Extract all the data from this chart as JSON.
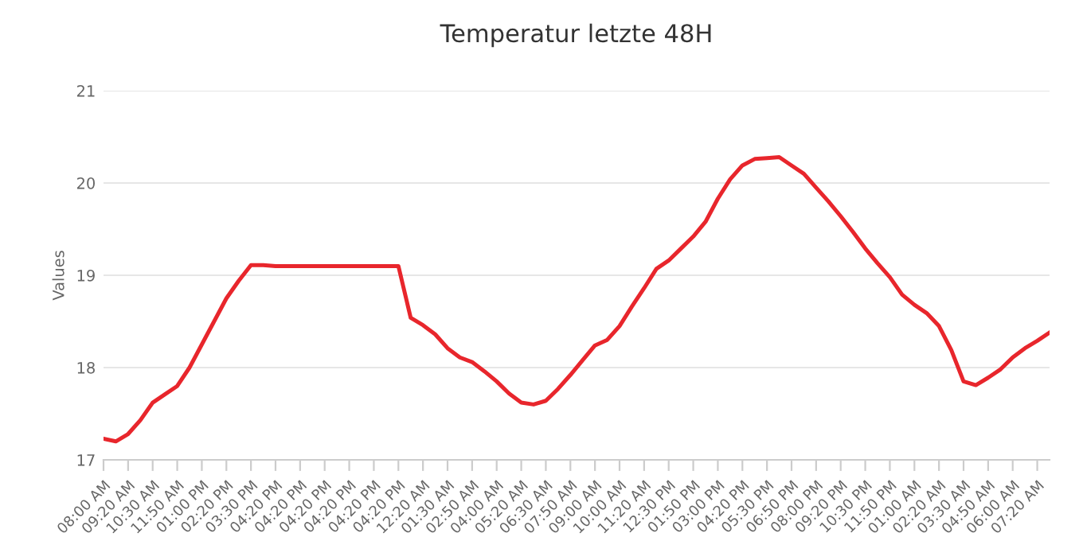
{
  "chart_data": {
    "type": "line",
    "title": "Temperatur letzte 48H",
    "ylabel": "Values",
    "categories": [
      "08:00 AM",
      null,
      "09:20 AM",
      null,
      "10:30 AM",
      null,
      "11:50 AM",
      null,
      "01:00 PM",
      null,
      "02:20 PM",
      null,
      "03:30 PM",
      null,
      "04:20 PM",
      null,
      "04:20 PM",
      null,
      "04:20 PM",
      null,
      "04:20 PM",
      null,
      "04:20 PM",
      null,
      "04:20 PM",
      null,
      "12:20 AM",
      null,
      "01:30 AM",
      null,
      "02:50 AM",
      null,
      "04:00 AM",
      null,
      "05:20 AM",
      null,
      "06:30 AM",
      null,
      "07:50 AM",
      null,
      "09:00 AM",
      null,
      "10:00 AM",
      null,
      "11:20 AM",
      null,
      "12:30 PM",
      null,
      "01:50 PM",
      null,
      "03:00 PM",
      null,
      "04:20 PM",
      null,
      "05:30 PM",
      null,
      "06:50 PM",
      null,
      "08:00 PM",
      null,
      "09:20 PM",
      null,
      "10:30 PM",
      null,
      "11:50 PM",
      null,
      "01:00 AM",
      null,
      "02:20 AM",
      null,
      "03:30 AM",
      null,
      "04:50 AM",
      null,
      "06:00 AM",
      null,
      "07:20 AM",
      null
    ],
    "series": [
      {
        "color": "#e8262c",
        "values": [
          17.23,
          17.2,
          17.28,
          17.43,
          17.62,
          17.71,
          17.8,
          18.0,
          18.25,
          18.5,
          18.75,
          18.94,
          19.11,
          19.11,
          19.1,
          19.1,
          19.1,
          19.1,
          19.1,
          19.1,
          19.1,
          19.1,
          19.1,
          19.1,
          19.1,
          18.54,
          18.46,
          18.36,
          18.21,
          18.11,
          18.06,
          17.96,
          17.85,
          17.72,
          17.62,
          17.6,
          17.64,
          17.77,
          17.92,
          18.08,
          18.24,
          18.3,
          18.45,
          18.66,
          18.86,
          19.07,
          19.16,
          19.29,
          19.42,
          19.58,
          19.83,
          20.04,
          20.19,
          20.26,
          20.27,
          20.28,
          20.19,
          20.1,
          19.95,
          19.8,
          19.64,
          19.47,
          19.29,
          19.13,
          18.98,
          18.79,
          18.68,
          18.59,
          18.45,
          18.19,
          17.85,
          17.81,
          17.89,
          17.98,
          18.11,
          18.21,
          18.29,
          18.38
        ]
      }
    ],
    "ylim": [
      17,
      21
    ],
    "yticks": [
      17,
      18,
      19,
      20,
      21
    ],
    "grid": "y",
    "legend": false,
    "marker": "none",
    "line_style": "solid"
  }
}
